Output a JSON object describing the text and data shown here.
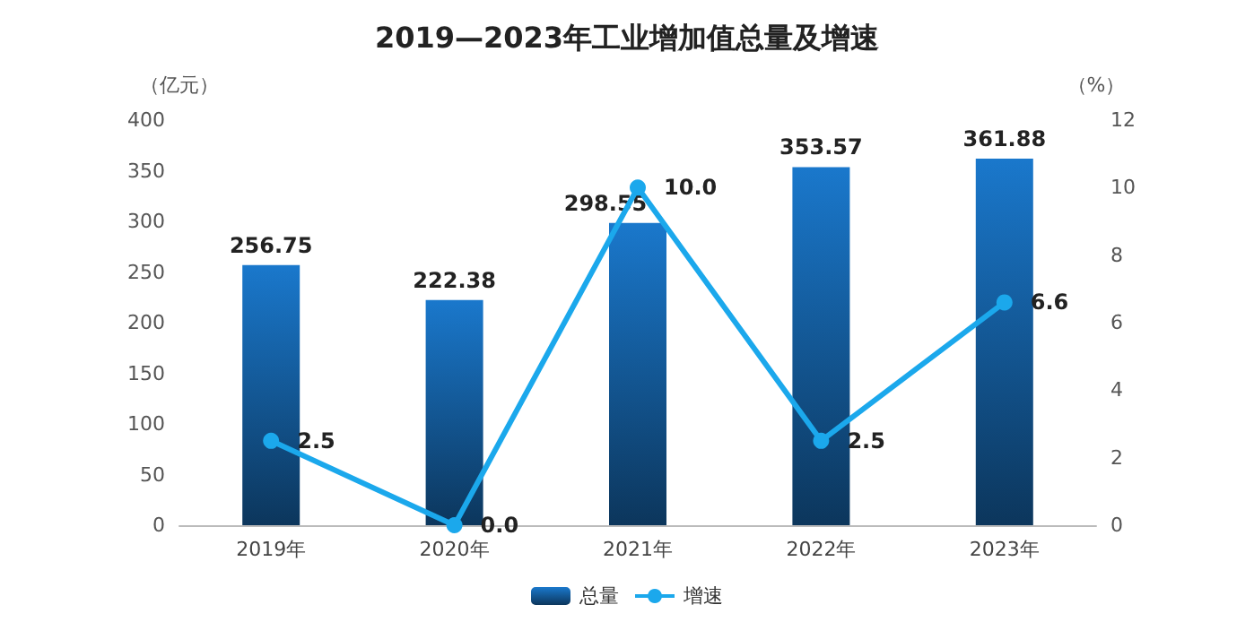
{
  "chart_data": {
    "type": "bar",
    "title": "2019—2023年工业增加值总量及增速",
    "ylabel": "（亿元）",
    "y2label": "（%）",
    "categories": [
      "2019年",
      "2020年",
      "2021年",
      "2022年",
      "2023年"
    ],
    "series": [
      {
        "name": "总量",
        "color": "#1a78cc",
        "values": [
          256.75,
          222.38,
          298.55,
          353.57,
          361.88
        ]
      },
      {
        "name": "增速",
        "type": "line",
        "axis": "y2",
        "color": "#1ba8ec",
        "marker": "circle",
        "values": [
          2.5,
          0.0,
          10.0,
          2.5,
          6.6
        ],
        "value_labels": [
          "2.5",
          "0.0",
          "10.0",
          "2.5",
          "6.6"
        ]
      }
    ],
    "ylim": [
      0,
      400
    ],
    "yticks": [
      0,
      50,
      100,
      150,
      200,
      250,
      300,
      350,
      400
    ],
    "y2lim": [
      0,
      12
    ],
    "y2ticks": [
      0,
      2,
      4,
      6,
      8,
      10,
      12
    ],
    "data_labels": true,
    "grid": false,
    "legend": "bottom"
  }
}
